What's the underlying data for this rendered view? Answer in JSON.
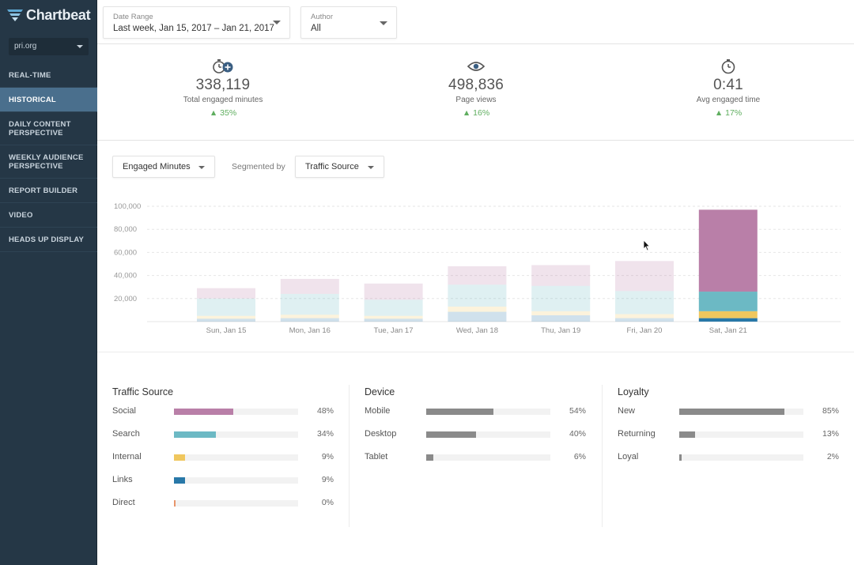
{
  "brand": {
    "name": "Chartbeat",
    "accent": "#253746",
    "active_nav": "#4a6f8d"
  },
  "site_selector": {
    "value": "pri.org"
  },
  "nav": [
    {
      "label": "REAL-TIME",
      "active": false
    },
    {
      "label": "HISTORICAL",
      "active": true
    },
    {
      "label": "DAILY CONTENT PERSPECTIVE",
      "active": false
    },
    {
      "label": "WEEKLY AUDIENCE PERSPECTIVE",
      "active": false
    },
    {
      "label": "REPORT BUILDER",
      "active": false
    },
    {
      "label": "VIDEO",
      "active": false
    },
    {
      "label": "HEADS UP DISPLAY",
      "active": false
    }
  ],
  "filters": {
    "date_range": {
      "label": "Date Range",
      "value": "Last week, Jan 15, 2017 – Jan 21, 2017"
    },
    "author": {
      "label": "Author",
      "value": "All"
    }
  },
  "metrics": [
    {
      "icon": "stopwatch-plus-icon",
      "value": "338,119",
      "label": "Total engaged minutes",
      "delta": "▲ 35%"
    },
    {
      "icon": "eye-icon",
      "value": "498,836",
      "label": "Page views",
      "delta": "▲ 16%"
    },
    {
      "icon": "stopwatch-icon",
      "value": "0:41",
      "label": "Avg engaged time",
      "delta": "▲ 17%"
    }
  ],
  "chart_controls": {
    "metric": "Engaged Minutes",
    "segmented_by_label": "Segmented by",
    "segment": "Traffic Source"
  },
  "chart_data": {
    "type": "bar",
    "stacked": true,
    "title": "",
    "xlabel": "",
    "ylabel": "",
    "ylim": [
      0,
      100000
    ],
    "yticks": [
      "20,000",
      "40,000",
      "60,000",
      "80,000",
      "100,000"
    ],
    "ytick_values": [
      20000,
      40000,
      60000,
      80000,
      100000
    ],
    "categories": [
      "Sun, Jan 15",
      "Mon, Jan 16",
      "Tue, Jan 17",
      "Wed, Jan 18",
      "Thu, Jan 19",
      "Fri, Jan 20",
      "Sat, Jan 21"
    ],
    "highlighted_category": "Sat, Jan 21",
    "series": [
      {
        "name": "Direct",
        "color": "#e8956b",
        "values": [
          0,
          0,
          0,
          0,
          0,
          0,
          0
        ]
      },
      {
        "name": "Links",
        "color": "#2878a8",
        "values": [
          2500,
          3000,
          2500,
          8500,
          5500,
          3000,
          3000
        ]
      },
      {
        "name": "Internal",
        "color": "#f0c75e",
        "values": [
          2500,
          3000,
          2500,
          4500,
          3500,
          3500,
          6000
        ]
      },
      {
        "name": "Search",
        "color": "#6cb9c4",
        "values": [
          15000,
          18000,
          14000,
          19000,
          22000,
          20000,
          17000
        ]
      },
      {
        "name": "Social",
        "color": "#b97fa8",
        "values": [
          9000,
          13000,
          14000,
          16000,
          18000,
          26000,
          71000
        ]
      }
    ]
  },
  "breakdown": {
    "traffic_source": {
      "title": "Traffic Source",
      "rows": [
        {
          "label": "Social",
          "pct": "48%",
          "value": 48,
          "color": "#b97fa8"
        },
        {
          "label": "Search",
          "pct": "34%",
          "value": 34,
          "color": "#6cb9c4"
        },
        {
          "label": "Internal",
          "pct": "9%",
          "value": 9,
          "color": "#f0c75e"
        },
        {
          "label": "Links",
          "pct": "9%",
          "value": 9,
          "color": "#2878a8"
        },
        {
          "label": "Direct",
          "pct": "0%",
          "value": 0.5,
          "color": "#e8956b"
        }
      ]
    },
    "device": {
      "title": "Device",
      "rows": [
        {
          "label": "Mobile",
          "pct": "54%",
          "value": 54,
          "color": "#8a8a8a"
        },
        {
          "label": "Desktop",
          "pct": "40%",
          "value": 40,
          "color": "#8a8a8a"
        },
        {
          "label": "Tablet",
          "pct": "6%",
          "value": 6,
          "color": "#8a8a8a"
        }
      ]
    },
    "loyalty": {
      "title": "Loyalty",
      "rows": [
        {
          "label": "New",
          "pct": "85%",
          "value": 85,
          "color": "#8a8a8a"
        },
        {
          "label": "Returning",
          "pct": "13%",
          "value": 13,
          "color": "#8a8a8a"
        },
        {
          "label": "Loyal",
          "pct": "2%",
          "value": 2,
          "color": "#8a8a8a"
        }
      ]
    }
  }
}
